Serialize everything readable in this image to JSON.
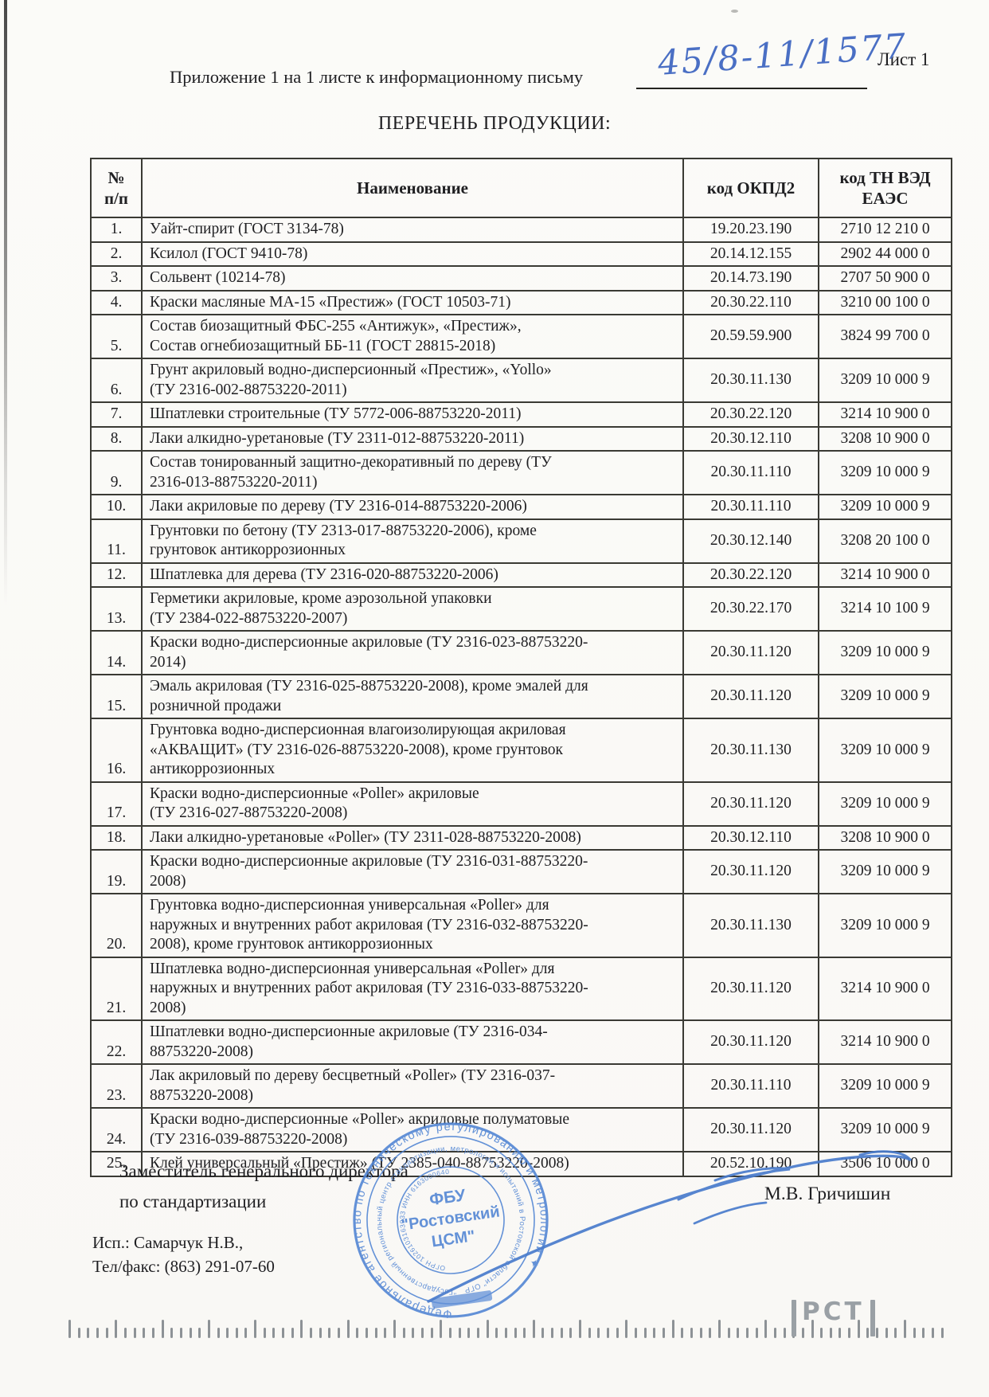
{
  "page": {
    "sheet_label": "Лист 1",
    "appendix_line": "Приложение 1 на 1 листе к информационному письму",
    "handwritten_number": "45/8-11/1577",
    "title": "ПЕРЕЧЕНЬ ПРОДУКЦИИ:"
  },
  "table": {
    "headers": {
      "num": "№\nп/п",
      "name": "Наименование",
      "okpd2": "код ОКПД2",
      "tnved": "код ТН ВЭД\nЕАЭС"
    },
    "rows": [
      {
        "num": "1.",
        "name": "Уайт-спирит (ГОСТ 3134-78)",
        "okpd2": "19.20.23.190",
        "tnved": "2710 12 210 0"
      },
      {
        "num": "2.",
        "name": "Ксилол (ГОСТ 9410-78)",
        "okpd2": "20.14.12.155",
        "tnved": "2902 44 000 0"
      },
      {
        "num": "3.",
        "name": "Сольвент (10214-78)",
        "okpd2": "20.14.73.190",
        "tnved": "2707 50 900 0"
      },
      {
        "num": "4.",
        "name": "Краски масляные МА-15 «Престиж» (ГОСТ 10503-71)",
        "okpd2": "20.30.22.110",
        "tnved": "3210 00 100 0"
      },
      {
        "num": "5.",
        "name": "Состав биозащитный ФБС-255 «Антижук», «Престиж»,\nСостав огнебиозащитный ББ-11 (ГОСТ 28815-2018)",
        "okpd2": "20.59.59.900",
        "tnved": "3824 99 700 0"
      },
      {
        "num": "6.",
        "name": "Грунт акриловый водно-дисперсионный «Престиж», «Yollo»\n(ТУ 2316-002-88753220-2011)",
        "okpd2": "20.30.11.130",
        "tnved": "3209 10 000 9"
      },
      {
        "num": "7.",
        "name": "Шпатлевки строительные (ТУ 5772-006-88753220-2011)",
        "okpd2": "20.30.22.120",
        "tnved": "3214 10 900 0"
      },
      {
        "num": "8.",
        "name": "Лаки алкидно-уретановые (ТУ 2311-012-88753220-2011)",
        "okpd2": "20.30.12.110",
        "tnved": "3208 10 900 0"
      },
      {
        "num": "9.",
        "name": "Состав тонированный защитно-декоративный по дереву (ТУ\n2316-013-88753220-2011)",
        "okpd2": "20.30.11.110",
        "tnved": "3209 10 000 9"
      },
      {
        "num": "10.",
        "name": "Лаки акриловые по дереву (ТУ 2316-014-88753220-2006)",
        "okpd2": "20.30.11.110",
        "tnved": "3209 10 000 9"
      },
      {
        "num": "11.",
        "name": "Грунтовки по бетону (ТУ 2313-017-88753220-2006), кроме\nгрунтовок антикоррозионных",
        "okpd2": "20.30.12.140",
        "tnved": "3208 20 100 0"
      },
      {
        "num": "12.",
        "name": "Шпатлевка для дерева (ТУ 2316-020-88753220-2006)",
        "okpd2": "20.30.22.120",
        "tnved": "3214 10 900 0"
      },
      {
        "num": "13.",
        "name": "Герметики акриловые, кроме аэрозольной упаковки\n(ТУ 2384-022-88753220-2007)",
        "okpd2": "20.30.22.170",
        "tnved": "3214 10 100 9"
      },
      {
        "num": "14.",
        "name": "Краски водно-дисперсионные акриловые (ТУ 2316-023-88753220-\n2014)",
        "okpd2": "20.30.11.120",
        "tnved": "3209 10 000 9"
      },
      {
        "num": "15.",
        "name": "Эмаль акриловая (ТУ 2316-025-88753220-2008), кроме эмалей для\nрозничной продажи",
        "okpd2": "20.30.11.120",
        "tnved": "3209 10 000 9"
      },
      {
        "num": "16.",
        "name": "Грунтовка водно-дисперсионная влагоизолирующая акриловая\n«АКВАЩИТ» (ТУ 2316-026-88753220-2008), кроме грунтовок\nантикоррозионных",
        "okpd2": "20.30.11.130",
        "tnved": "3209 10 000 9"
      },
      {
        "num": "17.",
        "name": "Краски водно-дисперсионные «Poller» акриловые\n(ТУ 2316-027-88753220-2008)",
        "okpd2": "20.30.11.120",
        "tnved": "3209 10 000 9"
      },
      {
        "num": "18.",
        "name": "Лаки алкидно-уретановые «Poller» (ТУ 2311-028-88753220-2008)",
        "okpd2": "20.30.12.110",
        "tnved": "3208 10 900 0"
      },
      {
        "num": "19.",
        "name": "Краски водно-дисперсионные акриловые (ТУ 2316-031-88753220-\n2008)",
        "okpd2": "20.30.11.120",
        "tnved": "3209 10 000 9"
      },
      {
        "num": "20.",
        "name": "Грунтовка водно-дисперсионная универсальная «Poller» для\nнаружных и внутренних работ акриловая (ТУ 2316-032-88753220-\n2008), кроме грунтовок антикоррозионных",
        "okpd2": "20.30.11.130",
        "tnved": "3209 10 000 9"
      },
      {
        "num": "21.",
        "name": "Шпатлевка водно-дисперсионная универсальная «Poller» для\nнаружных и внутренних работ акриловая (ТУ 2316-033-88753220-\n2008)",
        "okpd2": "20.30.11.120",
        "tnved": "3214 10 900 0"
      },
      {
        "num": "22.",
        "name": "Шпатлевки водно-дисперсионные акриловые (ТУ 2316-034-\n88753220-2008)",
        "okpd2": "20.30.11.120",
        "tnved": "3214 10 900 0"
      },
      {
        "num": "23.",
        "name": "Лак акриловый по дереву бесцветный «Poller» (ТУ 2316-037-\n88753220-2008)",
        "okpd2": "20.30.11.110",
        "tnved": "3209 10 000 9"
      },
      {
        "num": "24.",
        "name": "Краски водно-дисперсионные «Poller» акриловые полуматовые\n(ТУ 2316-039-88753220-2008)",
        "okpd2": "20.30.11.120",
        "tnved": "3209 10 000 9"
      },
      {
        "num": "25.",
        "name": "Клей универсальный «Престиж» (ТУ 2385-040-88753220-2008)",
        "okpd2": "20.52.10.190",
        "tnved": "3506 10 000 0"
      }
    ]
  },
  "signature_block": {
    "position_line1": "Заместитель генерального директора",
    "position_line2": "по стандартизации",
    "signer_name": "М.В. Гричишин",
    "executor": "Исп.: Самарчук Н.В.,",
    "phone": "Тел/факс: (863) 291-07-60"
  },
  "stamp": {
    "outer_ring": "Федеральное агентство по техническому регулированию и метрологии  ✦",
    "middle_ring": "\"Государственный региональный центр стандартизации, метрологии и испытаний в Ростовской области\" ОГР",
    "inner_ring": "ОГРН 1026103163933  ИНН 6163000640",
    "center_line1": "ФБУ",
    "center_line2": "\"Ростовский",
    "center_line3": "ЦСМ\""
  },
  "footer": {
    "rst_logo": "РСТ"
  },
  "colors": {
    "ink_blue": "#4a6fc4",
    "stamp_blue": "#4f83d3",
    "text": "#1f1f22",
    "border": "#3a3a34",
    "ruler_gray": "#8d9296"
  }
}
